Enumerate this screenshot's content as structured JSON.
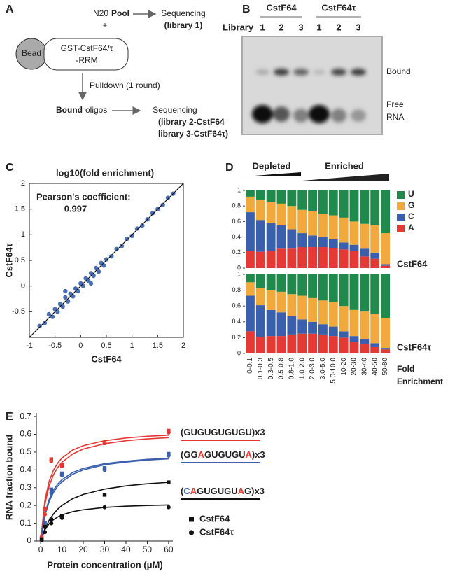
{
  "panel_labels": [
    "A",
    "B",
    "C",
    "D",
    "E"
  ],
  "diagram": {
    "pool_n": "N20",
    "pool": "Pool",
    "plus": "+",
    "seq1": "Sequencing",
    "lib1": "(library 1)",
    "bead": "Bead",
    "protein": [
      "GST-CstF64/τ",
      "-RRM"
    ],
    "pulldown": "Pulldown (1 round)",
    "bound": "Bound",
    "oligos": "oligos",
    "seq2": "Sequencing",
    "lib2": [
      "(library 2-CstF64",
      "library 3-CstF64τ)"
    ]
  },
  "gel": {
    "groups": [
      "CstF64",
      "CstF64τ"
    ],
    "row_label": "Library",
    "lanes": [
      "1",
      "2",
      "3",
      "1",
      "2",
      "3"
    ],
    "bands": [
      "Bound",
      "Free",
      "RNA"
    ]
  },
  "chart_data": [
    {
      "type": "scatter",
      "title": "log10(fold enrichment)",
      "xlabel": "CstF64",
      "ylabel": "CstF64τ",
      "annotations": [
        "Pearson's coefficient:",
        "0.997"
      ],
      "color": "#4a6fb5",
      "xlim": [
        -1,
        2
      ],
      "ylim": [
        -1,
        2
      ],
      "xticks": [
        -1,
        -0.5,
        0,
        0.5,
        1,
        1.5,
        2
      ],
      "yticks": [
        -0.5,
        0,
        0.5,
        1,
        1.5,
        2
      ],
      "x": [
        -0.8,
        -0.7,
        -0.62,
        -0.55,
        -0.5,
        -0.45,
        -0.4,
        -0.35,
        -0.3,
        -0.25,
        -0.2,
        -0.15,
        -0.1,
        -0.05,
        0,
        0.05,
        0.1,
        0.15,
        0.2,
        0.25,
        0.3,
        0.35,
        0.4,
        0.45,
        0.5,
        0.6,
        0.7,
        0.8,
        0.9,
        1.0,
        1.1,
        1.2,
        1.3,
        1.4,
        1.5,
        1.6,
        1.7,
        1.8,
        -0.3,
        0.2
      ],
      "values": [
        -0.78,
        -0.72,
        -0.55,
        -0.6,
        -0.45,
        -0.5,
        -0.35,
        -0.4,
        -0.22,
        -0.3,
        -0.15,
        -0.2,
        -0.05,
        -0.1,
        0.05,
        0.0,
        0.15,
        0.1,
        0.25,
        0.2,
        0.35,
        0.28,
        0.45,
        0.4,
        0.52,
        0.58,
        0.72,
        0.78,
        0.92,
        0.98,
        1.12,
        1.18,
        1.3,
        1.42,
        1.5,
        1.58,
        1.72,
        1.8,
        -0.1,
        0.05
      ]
    },
    {
      "type": "stacked-bar",
      "header": [
        "Depleted",
        "Enriched"
      ],
      "label": "CstF64",
      "ylim": [
        0,
        1
      ],
      "yticks": [
        0,
        0.2,
        0.4,
        0.6,
        0.8,
        1
      ],
      "series": [
        {
          "name": "A",
          "color": "#e53935",
          "values": [
            0.22,
            0.21,
            0.22,
            0.25,
            0.25,
            0.27,
            0.27,
            0.27,
            0.26,
            0.24,
            0.22,
            0.15,
            0.12,
            0.03
          ]
        },
        {
          "name": "C",
          "color": "#3a5fad",
          "values": [
            0.5,
            0.41,
            0.36,
            0.3,
            0.25,
            0.18,
            0.15,
            0.13,
            0.11,
            0.09,
            0.08,
            0.1,
            0.08,
            0.02
          ]
        },
        {
          "name": "G",
          "color": "#f2a93b",
          "values": [
            0.2,
            0.26,
            0.27,
            0.28,
            0.3,
            0.3,
            0.31,
            0.3,
            0.31,
            0.32,
            0.3,
            0.32,
            0.35,
            0.4
          ]
        },
        {
          "name": "U",
          "color": "#1f8a4c",
          "values": [
            0.08,
            0.12,
            0.15,
            0.17,
            0.2,
            0.25,
            0.27,
            0.3,
            0.32,
            0.35,
            0.4,
            0.43,
            0.45,
            0.55
          ]
        }
      ]
    },
    {
      "type": "stacked-bar",
      "label": "CstF64τ",
      "xlabel": [
        "Fold",
        "Enrichment"
      ],
      "ylim": [
        0,
        1
      ],
      "yticks": [
        0,
        0.2,
        0.4,
        0.6,
        0.8,
        1
      ],
      "categories": [
        "0-0.1",
        "0.1-0.3",
        "0.3-0.5",
        "0.5-0.8",
        "0.8-1.0",
        "1.0-2.0",
        "2.0-3.0",
        "3.0-5.0",
        "5.0-10.0",
        "10-20",
        "20-30",
        "30-40",
        "40-50",
        "50-80"
      ],
      "series": [
        {
          "color": "#e53935",
          "values": [
            0.28,
            0.21,
            0.22,
            0.22,
            0.24,
            0.25,
            0.25,
            0.24,
            0.22,
            0.2,
            0.15,
            0.12,
            0.08,
            0.05
          ]
        },
        {
          "color": "#3a5fad",
          "values": [
            0.45,
            0.4,
            0.33,
            0.3,
            0.23,
            0.18,
            0.15,
            0.13,
            0.12,
            0.08,
            0.07,
            0.06,
            0.05,
            0.02
          ]
        },
        {
          "color": "#f2a93b",
          "values": [
            0.17,
            0.22,
            0.25,
            0.26,
            0.28,
            0.3,
            0.3,
            0.3,
            0.31,
            0.32,
            0.33,
            0.35,
            0.37,
            0.38
          ]
        },
        {
          "color": "#1f8a4c",
          "values": [
            0.1,
            0.17,
            0.2,
            0.22,
            0.25,
            0.27,
            0.3,
            0.33,
            0.35,
            0.4,
            0.45,
            0.47,
            0.5,
            0.55
          ]
        }
      ]
    },
    {
      "type": "binding",
      "xlabel": "Protein concentration (μM)",
      "ylabel": "RNA fraction bound",
      "xlim": [
        -2,
        62
      ],
      "ylim": [
        0,
        0.72
      ],
      "xticks": [
        0,
        10,
        20,
        30,
        40,
        50,
        60
      ],
      "yticks": [
        0,
        0.1,
        0.2,
        0.3,
        0.4,
        0.5,
        0.6,
        0.7
      ],
      "legend": [
        {
          "name": "CstF64",
          "marker": "square"
        },
        {
          "name": "CstF64τ",
          "marker": "circle"
        }
      ],
      "x": [
        0.5,
        2,
        5,
        10,
        30,
        60
      ],
      "series": [
        {
          "color": "#e53935",
          "marker": "square",
          "values": [
            0.02,
            0.18,
            0.46,
            0.43,
            0.55,
            0.62
          ]
        },
        {
          "color": "#e53935",
          "marker": "circle",
          "values": [
            0.02,
            0.15,
            0.45,
            0.42,
            0.55,
            0.61
          ]
        },
        {
          "color": "#3a5fad",
          "marker": "square",
          "values": [
            0.01,
            0.1,
            0.29,
            0.38,
            0.41,
            0.49
          ]
        },
        {
          "color": "#3a5fad",
          "marker": "circle",
          "values": [
            0.01,
            0.09,
            0.27,
            0.37,
            0.4,
            0.48
          ]
        },
        {
          "color": "#111111",
          "marker": "square",
          "values": [
            0.01,
            0.08,
            0.12,
            0.14,
            0.26,
            0.33
          ]
        },
        {
          "color": "#111111",
          "marker": "circle",
          "values": [
            0.005,
            0.05,
            0.1,
            0.13,
            0.19,
            0.19
          ]
        }
      ],
      "fit_x": [
        0,
        2,
        4,
        6,
        8,
        10,
        15,
        20,
        30,
        40,
        50,
        60
      ],
      "fits": [
        {
          "color": "#e53935",
          "values": [
            0,
            0.229,
            0.336,
            0.398,
            0.438,
            0.467,
            0.511,
            0.536,
            0.564,
            0.579,
            0.589,
            0.595
          ]
        },
        {
          "color": "#e53935",
          "values": [
            0,
            0.207,
            0.31,
            0.372,
            0.413,
            0.443,
            0.489,
            0.517,
            0.547,
            0.564,
            0.574,
            0.581
          ]
        },
        {
          "color": "#3a5fad",
          "values": [
            0,
            0.154,
            0.235,
            0.286,
            0.32,
            0.345,
            0.385,
            0.408,
            0.435,
            0.449,
            0.459,
            0.465
          ]
        },
        {
          "color": "#3a5fad",
          "values": [
            0,
            0.143,
            0.222,
            0.273,
            0.308,
            0.333,
            0.375,
            0.4,
            0.429,
            0.444,
            0.455,
            0.462
          ]
        },
        {
          "color": "#111111",
          "values": [
            0,
            0.069,
            0.117,
            0.152,
            0.179,
            0.2,
            0.238,
            0.262,
            0.292,
            0.31,
            0.322,
            0.33
          ]
        },
        {
          "color": "#111111",
          "values": [
            0,
            0.063,
            0.098,
            0.12,
            0.135,
            0.147,
            0.165,
            0.176,
            0.189,
            0.196,
            0.2,
            0.203
          ]
        }
      ],
      "annotations": [
        {
          "underline": "#e53935",
          "parts": [
            "(GUGUGUGUGU)x3"
          ],
          "colors": [
            "#222222"
          ]
        },
        {
          "underline": "#3a5fad",
          "parts": [
            "(GG",
            "A",
            "GUGUGU",
            "A",
            ")x3"
          ],
          "colors": [
            "#222222",
            "#e53935",
            "#222222",
            "#e53935",
            "#222222"
          ]
        },
        {
          "underline": "#111111",
          "parts": [
            "(",
            "C",
            "A",
            "GUGUGU",
            "A",
            "G)x3"
          ],
          "colors": [
            "#222222",
            "#3a5fad",
            "#e53935",
            "#222222",
            "#e53935",
            "#222222"
          ]
        }
      ]
    }
  ]
}
